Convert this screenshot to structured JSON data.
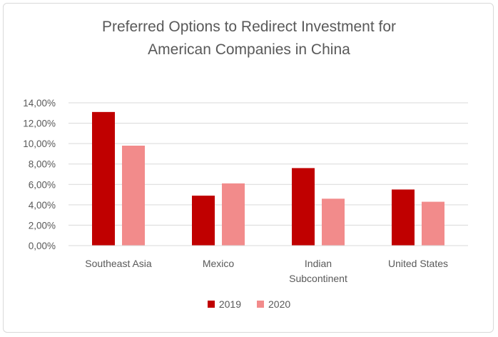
{
  "chart_data": {
    "type": "bar",
    "title": [
      "Preferred Options to Redirect Investment for",
      "American Companies in China"
    ],
    "categories": [
      [
        "Southeast Asia"
      ],
      [
        "Mexico"
      ],
      [
        "Indian",
        "Subcontinent"
      ],
      [
        "United States"
      ]
    ],
    "series": [
      {
        "name": "2019",
        "color": "#c00000",
        "values": [
          13.1,
          4.9,
          7.6,
          5.5
        ]
      },
      {
        "name": "2020",
        "color": "#f28b8b",
        "values": [
          9.8,
          6.1,
          4.6,
          4.3
        ]
      }
    ],
    "ylim": [
      0,
      14
    ],
    "yticks": [
      0,
      2,
      4,
      6,
      8,
      10,
      12,
      14
    ],
    "ytick_labels": [
      "0,00%",
      "2,00%",
      "4,00%",
      "6,00%",
      "8,00%",
      "10,00%",
      "12,00%",
      "14,00%"
    ],
    "grid": true,
    "legend_position": "bottom"
  }
}
